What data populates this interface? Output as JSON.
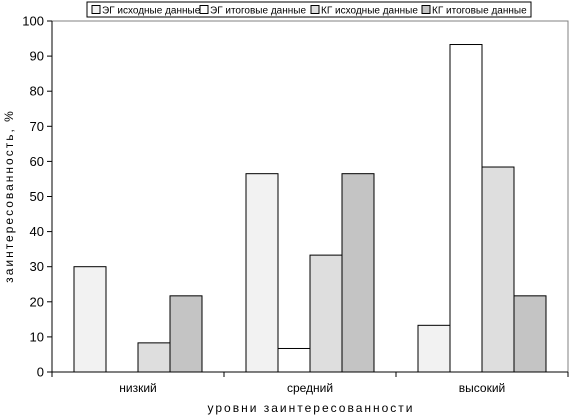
{
  "chart_data": {
    "type": "bar",
    "categories": [
      "низкий",
      "средний",
      "высокий"
    ],
    "series": [
      {
        "name": "ЭГ исходные данные",
        "color": "#f2f2f2",
        "values": [
          30,
          56.5,
          13.3
        ]
      },
      {
        "name": "ЭГ итоговые данные",
        "color": "#ffffff",
        "values": [
          0,
          6.7,
          93.3
        ]
      },
      {
        "name": "КГ исходные данные",
        "color": "#dedede",
        "values": [
          8.3,
          33.3,
          58.4
        ]
      },
      {
        "name": "КГ итоговые данные",
        "color": "#c4c4c4",
        "values": [
          21.7,
          56.5,
          21.7
        ]
      }
    ],
    "ylim": [
      0,
      100
    ],
    "yticks": [
      0,
      10,
      20,
      30,
      40,
      50,
      60,
      70,
      80,
      90,
      100
    ],
    "xlabel": "уровни заинтересованности",
    "ylabel": "заинтересованность, %",
    "legend": "top",
    "grid": false
  }
}
